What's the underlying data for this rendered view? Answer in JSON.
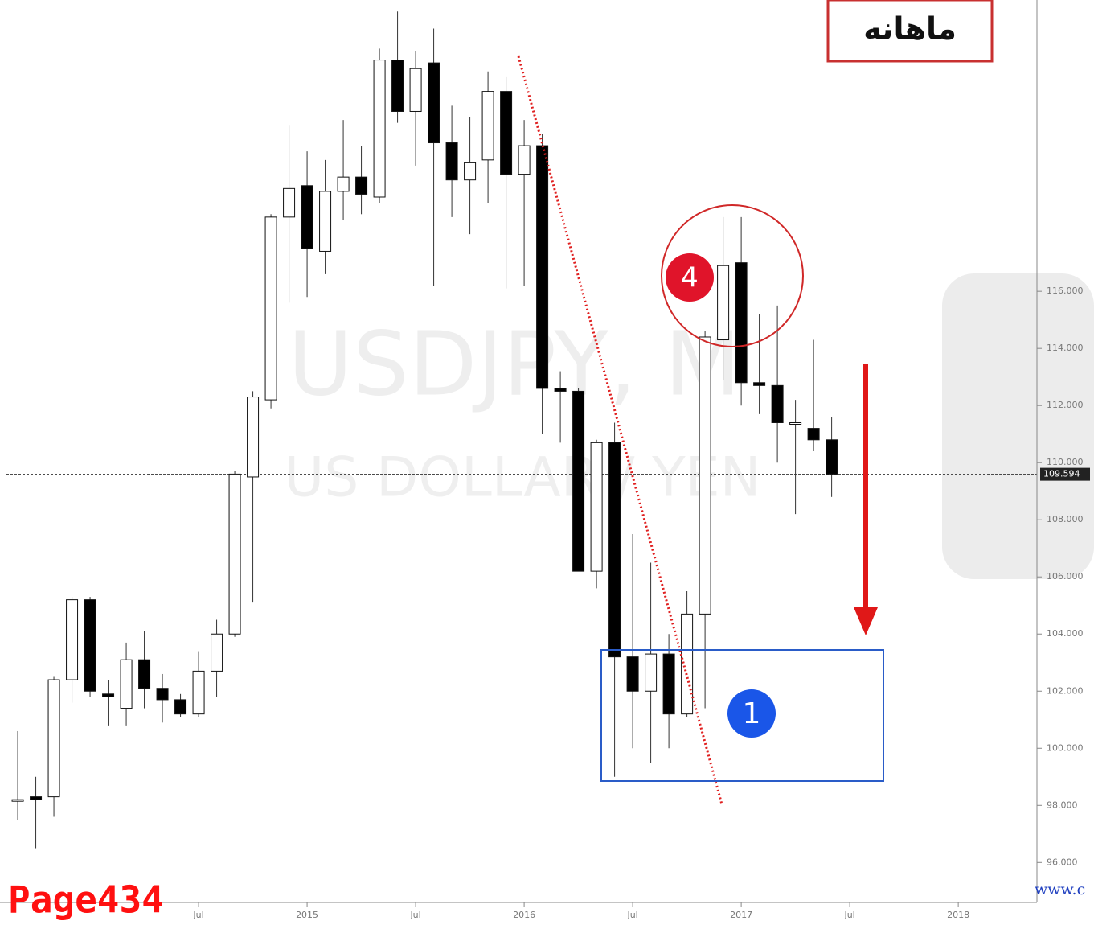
{
  "chart_data": {
    "type": "candlestick",
    "ohlc": [
      [
        98.2,
        100.6,
        97.5,
        98.2
      ],
      [
        98.3,
        99.0,
        96.5,
        98.2
      ],
      [
        98.3,
        102.5,
        97.6,
        102.4
      ],
      [
        102.4,
        105.3,
        101.6,
        105.2
      ],
      [
        105.2,
        105.3,
        101.8,
        102.0
      ],
      [
        101.9,
        102.4,
        100.8,
        101.8
      ],
      [
        101.4,
        103.7,
        100.8,
        103.1
      ],
      [
        103.1,
        104.1,
        101.4,
        102.1
      ],
      [
        102.1,
        102.6,
        100.9,
        101.7
      ],
      [
        101.7,
        101.9,
        101.1,
        101.2
      ],
      [
        101.2,
        103.4,
        101.1,
        102.7
      ],
      [
        102.7,
        104.5,
        101.8,
        104.0
      ],
      [
        104.0,
        109.7,
        103.9,
        109.6
      ],
      [
        109.5,
        112.5,
        105.1,
        112.3
      ],
      [
        112.2,
        118.7,
        111.9,
        118.6
      ],
      [
        118.6,
        121.8,
        115.6,
        119.6
      ],
      [
        119.7,
        120.9,
        115.8,
        117.5
      ],
      [
        117.4,
        120.6,
        116.6,
        119.5
      ],
      [
        119.5,
        122.0,
        118.5,
        120.0
      ],
      [
        120.0,
        121.1,
        118.7,
        119.4
      ],
      [
        119.3,
        124.5,
        119.1,
        124.1
      ],
      [
        124.1,
        125.8,
        121.9,
        122.3
      ],
      [
        122.3,
        124.4,
        120.4,
        123.8
      ],
      [
        124.0,
        125.2,
        116.2,
        121.2
      ],
      [
        121.2,
        122.5,
        118.6,
        119.9
      ],
      [
        119.9,
        122.1,
        118.0,
        120.5
      ],
      [
        120.6,
        123.7,
        119.1,
        123.0
      ],
      [
        123.0,
        123.5,
        116.1,
        120.1
      ],
      [
        120.1,
        122.0,
        116.2,
        121.1
      ],
      [
        121.1,
        121.5,
        111.0,
        112.6
      ],
      [
        112.6,
        113.2,
        110.7,
        112.5
      ],
      [
        112.5,
        112.6,
        106.2,
        106.2
      ],
      [
        106.2,
        110.8,
        105.6,
        110.7
      ],
      [
        110.7,
        111.4,
        99.0,
        103.2
      ],
      [
        103.2,
        107.5,
        100.0,
        102.0
      ],
      [
        102.0,
        106.5,
        99.5,
        103.3
      ],
      [
        103.3,
        104.0,
        100.0,
        101.2
      ],
      [
        101.2,
        105.5,
        101.1,
        104.7
      ],
      [
        104.7,
        114.6,
        101.4,
        114.4
      ],
      [
        114.3,
        118.6,
        112.9,
        116.9
      ],
      [
        117.0,
        118.6,
        112.0,
        112.8
      ],
      [
        112.8,
        115.2,
        111.7,
        112.7
      ],
      [
        112.7,
        115.5,
        110.0,
        111.4
      ],
      [
        111.4,
        112.2,
        108.2,
        111.4
      ],
      [
        111.2,
        114.3,
        110.4,
        110.8
      ],
      [
        110.8,
        111.6,
        108.8,
        109.6
      ]
    ],
    "up_color": "#ffffff",
    "down_color": "#000000",
    "xlim": [
      -0.98,
      56.35
    ],
    "xticks": [
      {
        "value": 10,
        "label": "Jul"
      },
      {
        "value": 16,
        "label": "2015"
      },
      {
        "value": 22,
        "label": "Jul"
      },
      {
        "value": 28,
        "label": "2016"
      },
      {
        "value": 34,
        "label": "Jul"
      },
      {
        "value": 40,
        "label": "2017"
      },
      {
        "value": 46,
        "label": "Jul"
      },
      {
        "value": 52,
        "label": "2018"
      }
    ],
    "ylim": [
      94.6,
      126.2
    ],
    "yticks": [
      {
        "value": 96,
        "label": "96.000"
      },
      {
        "value": 98,
        "label": "98.000"
      },
      {
        "value": 100,
        "label": "100.000"
      },
      {
        "value": 102,
        "label": "102.000"
      },
      {
        "value": 104,
        "label": "104.000"
      },
      {
        "value": 106,
        "label": "106.000"
      },
      {
        "value": 108,
        "label": "108.000"
      },
      {
        "value": 110,
        "label": "110.000"
      },
      {
        "value": 112,
        "label": "112.000"
      },
      {
        "value": 114,
        "label": "114.000"
      },
      {
        "value": 116,
        "label": "116.000"
      }
    ],
    "current_price": 109.594,
    "watermark_symbol": "USDJPY, M",
    "watermark_name": "US DOLLAR / YEN",
    "timeframe_label": "ماهانه",
    "circle_label": "4",
    "box_label": "1",
    "page_label": "Page434",
    "site_label": "www.c"
  }
}
